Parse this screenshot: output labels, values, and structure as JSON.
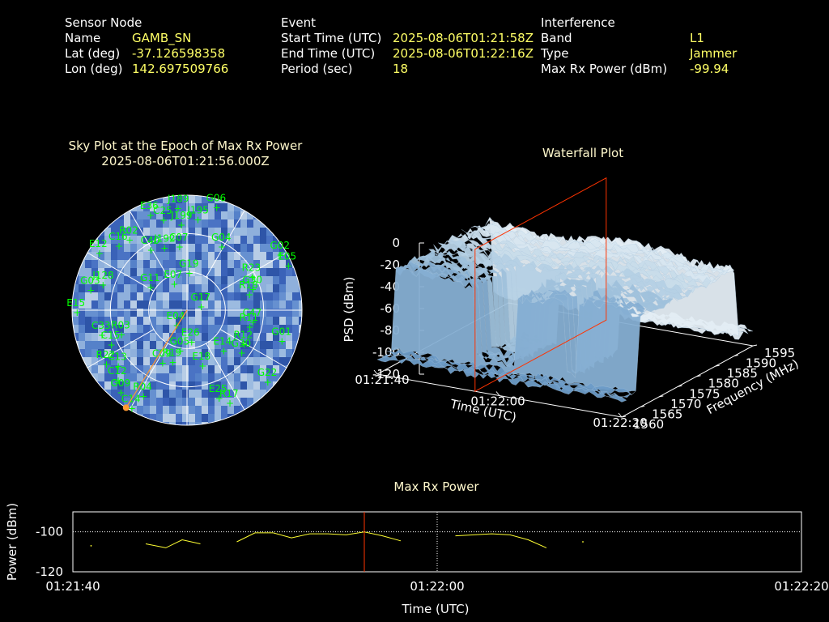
{
  "header": {
    "sensor": {
      "heading": "Sensor Node",
      "name_label": "Name",
      "name": "GAMB_SN",
      "lat_label": "Lat (deg)",
      "lat": "-37.126598358",
      "lon_label": "Lon (deg)",
      "lon": "142.697509766"
    },
    "event": {
      "heading": "Event",
      "start_label": "Start Time (UTC)",
      "start": "2025-08-06T01:21:58Z",
      "end_label": "End Time (UTC)",
      "end": "2025-08-06T01:22:16Z",
      "period_label": "Period (sec)",
      "period": "18"
    },
    "interference": {
      "heading": "Interference",
      "band_label": "Band",
      "band": "L1",
      "type_label": "Type",
      "type": "Jammer",
      "maxrx_label": "Max Rx Power (dBm)",
      "maxrx": "-99.94"
    }
  },
  "colors": {
    "label": "#ffffff",
    "value": "#ffff66",
    "title": "#fff8cc",
    "sat": "#00ff00",
    "marker": "#ff3300",
    "jammer_dir": "#ff9933",
    "power_line": "#ffff33"
  },
  "chart_data": [
    {
      "type": "scatter",
      "subtype": "polar-skyplot",
      "title": "Sky Plot at the Epoch of Max Rx Power",
      "subtitle": "2025-08-06T01:21:56.000Z",
      "rings_elevation_deg": [
        0,
        30,
        60
      ],
      "jammer_azimuth_deg": 212,
      "jammer_elevation_deg": 0,
      "satellites": [
        {
          "id": "E36",
          "az": 339,
          "el": 5
        },
        {
          "id": "J189",
          "az": 354,
          "el": 5
        },
        {
          "id": "G06",
          "az": 14,
          "el": 2
        },
        {
          "id": "C25",
          "az": 345,
          "el": 12
        },
        {
          "id": "J195",
          "az": 5,
          "el": 14
        },
        {
          "id": "J199",
          "az": 355,
          "el": 18
        },
        {
          "id": "R02",
          "az": 322,
          "el": 14
        },
        {
          "id": "C16",
          "az": 315,
          "el": 12
        },
        {
          "id": "E12",
          "az": 305,
          "el": 4
        },
        {
          "id": "C40",
          "az": 330,
          "el": 30
        },
        {
          "id": "J192",
          "az": 340,
          "el": 33
        },
        {
          "id": "C07",
          "az": 352,
          "el": 35
        },
        {
          "id": "G04",
          "az": 25,
          "el": 30
        },
        {
          "id": "G02",
          "az": 56,
          "el": 4
        },
        {
          "id": "E05",
          "az": 63,
          "el": 3
        },
        {
          "id": "R23",
          "az": 58,
          "el": 32
        },
        {
          "id": "G30",
          "az": 67,
          "el": 36
        },
        {
          "id": "R18",
          "az": 70,
          "el": 40
        },
        {
          "id": "G19",
          "az": 0,
          "el": 56
        },
        {
          "id": "J128",
          "az": 290,
          "el": 18
        },
        {
          "id": "G03",
          "az": 285,
          "el": 10
        },
        {
          "id": "G11",
          "az": 307,
          "el": 52
        },
        {
          "id": "E07",
          "az": 335,
          "el": 62
        },
        {
          "id": "G17",
          "az": 50,
          "el": 78
        },
        {
          "id": "E04",
          "az": 235,
          "el": 78
        },
        {
          "id": "E15",
          "az": 272,
          "el": 2
        },
        {
          "id": "C33",
          "az": 258,
          "el": 20
        },
        {
          "id": "R03",
          "az": 255,
          "el": 35
        },
        {
          "id": "C15",
          "az": 250,
          "el": 25
        },
        {
          "id": "C47",
          "az": 95,
          "el": 40
        },
        {
          "id": "R11",
          "az": 100,
          "el": 42
        },
        {
          "id": "R12",
          "az": 117,
          "el": 42
        },
        {
          "id": "G01",
          "az": 105,
          "el": 15
        },
        {
          "id": "R22",
          "az": 240,
          "el": 15
        },
        {
          "id": "C13",
          "az": 235,
          "el": 22
        },
        {
          "id": "C12",
          "az": 228,
          "el": 15
        },
        {
          "id": "G09",
          "az": 222,
          "el": 10
        },
        {
          "id": "C09",
          "az": 210,
          "el": 48
        },
        {
          "id": "G05",
          "az": 195,
          "el": 62
        },
        {
          "id": "E26",
          "az": 175,
          "el": 70
        },
        {
          "id": "R19",
          "az": 200,
          "el": 52
        },
        {
          "id": "E18",
          "az": 165,
          "el": 50
        },
        {
          "id": "E14",
          "az": 135,
          "el": 52
        },
        {
          "id": "G30",
          "az": 125,
          "el": 40
        },
        {
          "id": "R04",
          "az": 210,
          "el": 18
        },
        {
          "id": "C14",
          "az": 212,
          "el": 5
        },
        {
          "id": "E25",
          "az": 160,
          "el": 22
        },
        {
          "id": "R17",
          "az": 155,
          "el": 15
        },
        {
          "id": "G22",
          "az": 130,
          "el": 10
        }
      ]
    },
    {
      "type": "area",
      "subtype": "3d-waterfall",
      "title": "Waterfall Plot",
      "zlabel": "PSD (dBm)",
      "xlabel": "Time (UTC)",
      "ylabel": "Frequency (MHz)",
      "zlim": [
        -120,
        0
      ],
      "z_ticks": [
        "0",
        "-20",
        "-40",
        "-60",
        "-80",
        "-100",
        "-120"
      ],
      "x_ticks": [
        "01:21:40",
        "01:22:00",
        "01:22:20"
      ],
      "y_ticks": [
        "1560",
        "1565",
        "1570",
        "1575",
        "1580",
        "1585",
        "1590",
        "1595"
      ],
      "peak_psd_dbm": -25,
      "floor_psd_dbm": -105,
      "marker_time": "01:21:56"
    },
    {
      "type": "line",
      "title": "Max Rx Power",
      "xlabel": "Time (UTC)",
      "ylabel": "Power (dBm)",
      "x_ticks": [
        "01:21:40",
        "01:22:00",
        "01:22:20"
      ],
      "y_ticks": [
        "-100",
        "-120"
      ],
      "ylim": [
        -120,
        -90
      ],
      "marker_time_sec": 16,
      "series": [
        {
          "segments": [
            [
              [
                1,
                -107
              ]
            ],
            [
              [
                4,
                -106
              ],
              [
                5.1,
                -108
              ],
              [
                6,
                -104
              ],
              [
                7,
                -106
              ]
            ],
            [
              [
                9,
                -105
              ],
              [
                10,
                -100.5
              ],
              [
                11,
                -100.5
              ],
              [
                12,
                -103
              ],
              [
                13,
                -101
              ],
              [
                14,
                -101
              ],
              [
                15,
                -101.5
              ],
              [
                16,
                -100
              ],
              [
                17,
                -102
              ],
              [
                18,
                -104.5
              ]
            ],
            [
              [
                21,
                -102
              ],
              [
                23,
                -101
              ],
              [
                24,
                -101.5
              ],
              [
                25,
                -104
              ],
              [
                26,
                -108
              ]
            ],
            [
              [
                28,
                -105
              ]
            ]
          ]
        }
      ]
    }
  ]
}
